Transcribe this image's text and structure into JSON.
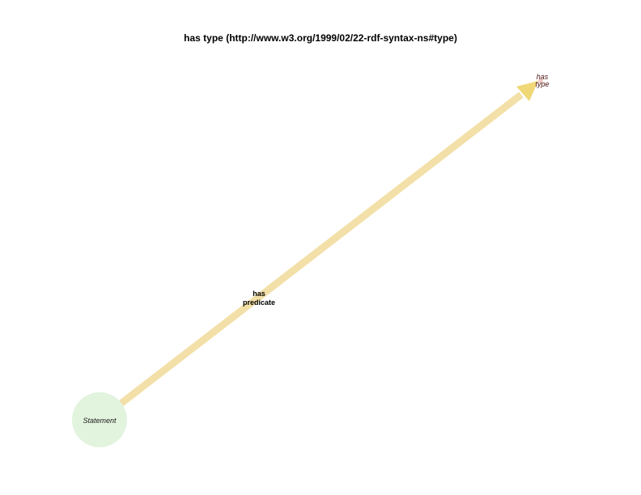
{
  "title": "has type (http://www.w3.org/1999/02/22-rdf-syntax-ns#type)",
  "nodes": {
    "statement": {
      "label": "Statement",
      "color": "#e2f3de"
    },
    "has_type": {
      "label_line1": "has",
      "label_line2": "type",
      "color": "#f0c8c8"
    }
  },
  "edges": {
    "has_predicate": {
      "label_line1": "has",
      "label_line2": "predicate",
      "color": "#f3e0a8",
      "arrow_color": "#f0d878"
    }
  },
  "colors": {
    "background": "#ffffff"
  }
}
